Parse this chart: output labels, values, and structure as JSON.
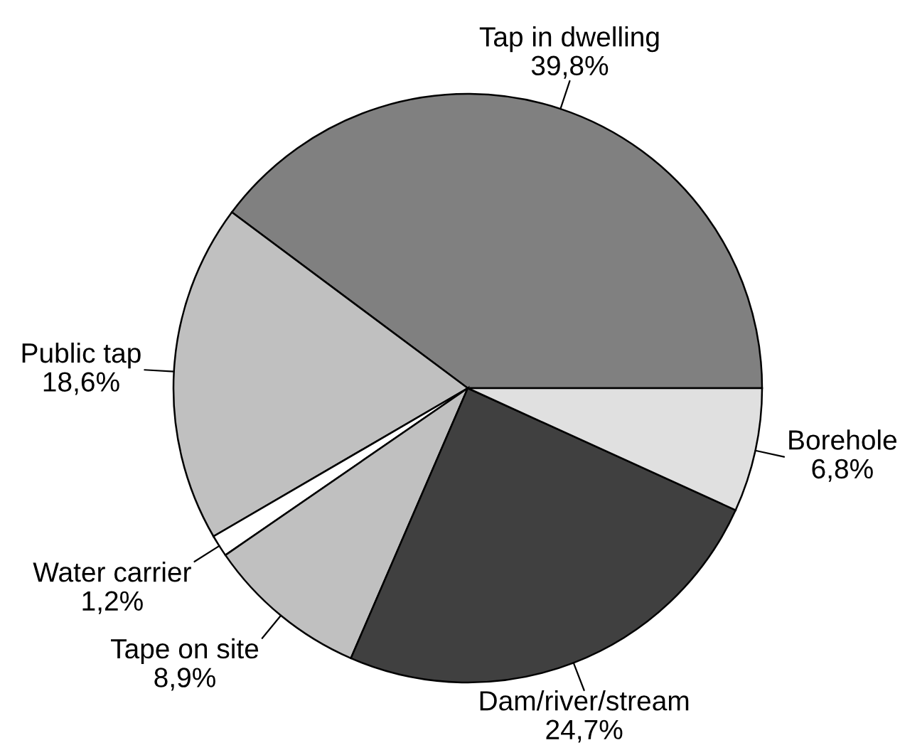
{
  "chart_data": {
    "type": "pie",
    "categories": [
      "Tap in dwelling",
      "Public tap",
      "Water carrier",
      "Tape on site",
      "Dam/river/stream",
      "Borehole"
    ],
    "values": [
      39.8,
      18.6,
      1.2,
      8.9,
      24.7,
      6.8
    ],
    "colors": [
      "#808080",
      "#c0c0c0",
      "#ffffff",
      "#c0c0c0",
      "#404040",
      "#e0e0e0"
    ],
    "value_labels": [
      "39,8%",
      "18,6%",
      "1,2%",
      "8,9%",
      "24,7%",
      "6,8%"
    ]
  }
}
